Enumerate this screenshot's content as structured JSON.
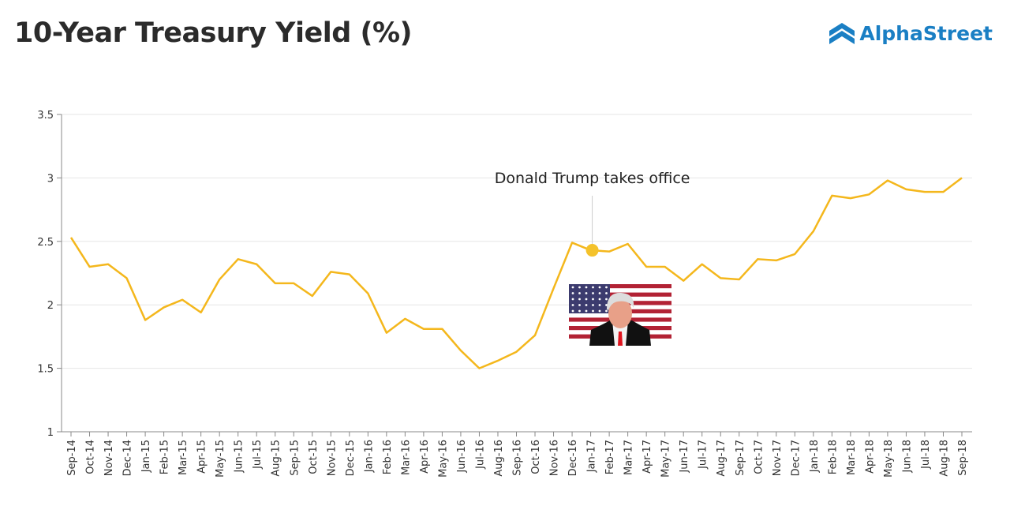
{
  "brand": {
    "name": "AlphaStreet",
    "color": "#1a7fc4"
  },
  "chart_data": {
    "type": "line",
    "title": "10-Year Treasury Yield (%)",
    "xlabel": "",
    "ylabel": "",
    "ylim": [
      1,
      3.5
    ],
    "yticks": [
      1,
      1.5,
      2,
      2.5,
      3,
      3.5
    ],
    "grid": true,
    "line_color": "#f4b71c",
    "categories": [
      "Sep-14",
      "Oct-14",
      "Nov-14",
      "Dec-14",
      "Jan-15",
      "Feb-15",
      "Mar-15",
      "Apr-15",
      "May-15",
      "Jun-15",
      "Jul-15",
      "Aug-15",
      "Sep-15",
      "Oct-15",
      "Nov-15",
      "Dec-15",
      "Jan-16",
      "Feb-16",
      "Mar-16",
      "Apr-16",
      "May-16",
      "Jun-16",
      "Jul-16",
      "Aug-16",
      "Sep-16",
      "Oct-16",
      "Nov-16",
      "Dec-16",
      "Jan-17",
      "Feb-17",
      "Mar-17",
      "Apr-17",
      "May-17",
      "Jun-17",
      "Jul-17",
      "Aug-17",
      "Sep-17",
      "Oct-17",
      "Nov-17",
      "Dec-17",
      "Jan-18",
      "Feb-18",
      "Mar-18",
      "Apr-18",
      "May-18",
      "Jun-18",
      "Jul-18",
      "Aug-18",
      "Sep-18"
    ],
    "values": [
      2.53,
      2.3,
      2.32,
      2.21,
      1.88,
      1.98,
      2.04,
      1.94,
      2.2,
      2.36,
      2.32,
      2.17,
      2.17,
      2.07,
      2.26,
      2.24,
      2.09,
      1.78,
      1.89,
      1.81,
      1.81,
      1.64,
      1.5,
      1.56,
      1.63,
      1.76,
      2.13,
      2.49,
      2.43,
      2.42,
      2.48,
      2.3,
      2.3,
      2.19,
      2.32,
      2.21,
      2.2,
      2.36,
      2.35,
      2.4,
      2.58,
      2.86,
      2.84,
      2.87,
      2.98,
      2.91,
      2.89,
      2.89,
      3.0
    ],
    "annotations": [
      {
        "category": "Jan-17",
        "text": "Donald Trump takes office",
        "marker_color": "#f4c22b"
      }
    ]
  }
}
